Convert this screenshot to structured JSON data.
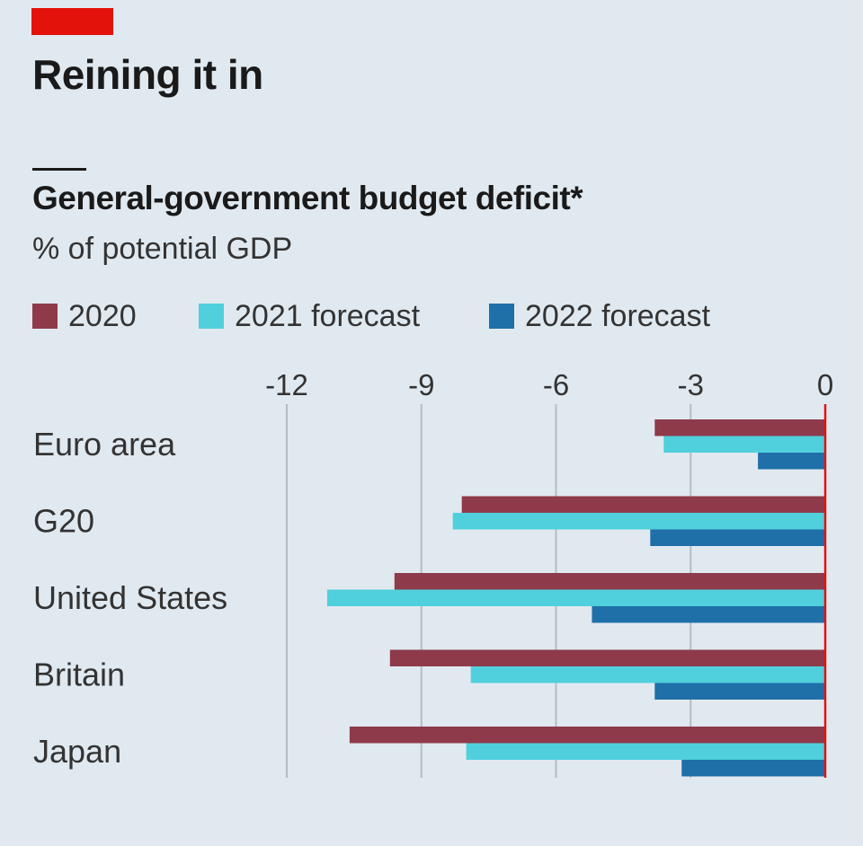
{
  "header": {
    "headline": "Reining it in",
    "title": "General-government budget deficit*",
    "subtitle": "% of potential GDP"
  },
  "chart_data": {
    "type": "bar",
    "orientation": "horizontal",
    "title": "General-government budget deficit*",
    "subtitle": "% of potential GDP",
    "categories": [
      "Euro area",
      "G20",
      "United States",
      "Britain",
      "Japan"
    ],
    "series": [
      {
        "name": "2020",
        "color": "#8e3a4a",
        "values": [
          -3.8,
          -8.1,
          -9.6,
          -9.7,
          -10.6
        ]
      },
      {
        "name": "2021 forecast",
        "color": "#4fd0dc",
        "values": [
          -3.6,
          -8.3,
          -11.1,
          -7.9,
          -8.0
        ]
      },
      {
        "name": "2022 forecast",
        "color": "#1f6fa8",
        "values": [
          -1.5,
          -3.9,
          -5.2,
          -3.8,
          -3.2
        ]
      }
    ],
    "xticks": [
      -12,
      -9,
      -6,
      -3,
      0
    ],
    "xtick_labels": [
      "-12",
      "-9",
      "-6",
      "-3",
      "0"
    ],
    "xlim": [
      -12,
      0
    ],
    "grid": true,
    "legend_position": "top-left",
    "zero_line_color": "#e3120b"
  }
}
